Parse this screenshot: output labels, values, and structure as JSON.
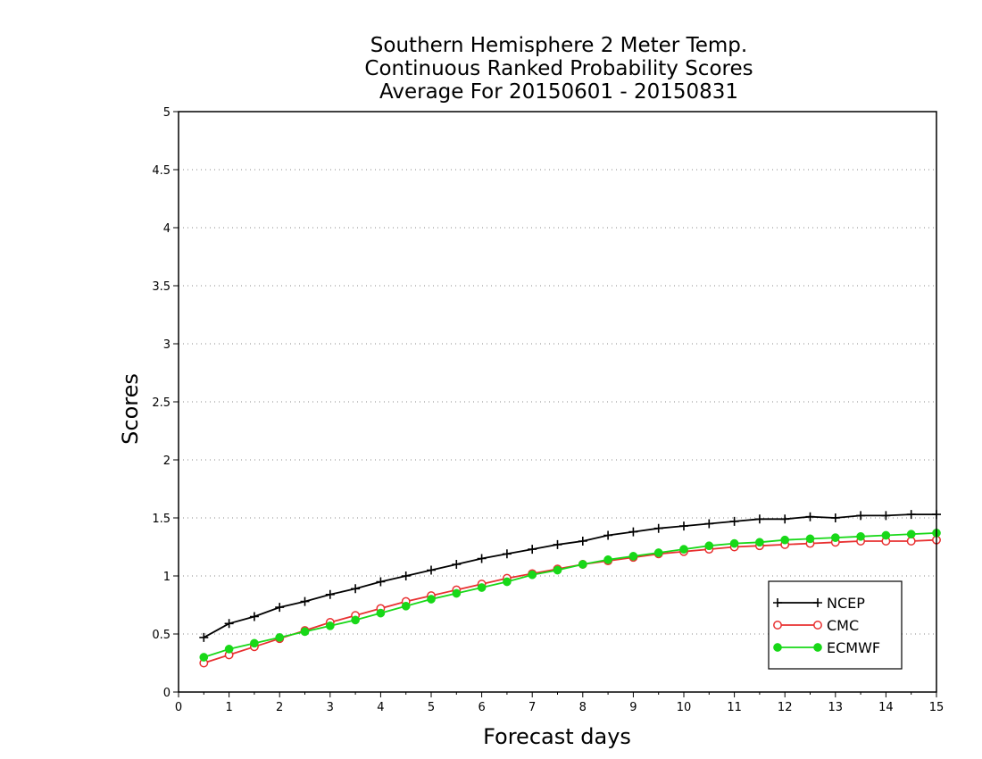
{
  "chart_data": {
    "type": "line",
    "title": [
      "Southern Hemisphere 2 Meter Temp.",
      "Continuous Ranked Probability Scores",
      "Average For 20150601 - 20150831"
    ],
    "xlabel": "Forecast days",
    "ylabel": "Scores",
    "xlim": [
      0,
      15
    ],
    "ylim": [
      0,
      5
    ],
    "xticks": [
      "0",
      "1",
      "2",
      "3",
      "4",
      "5",
      "6",
      "7",
      "8",
      "9",
      "10",
      "11",
      "12",
      "13",
      "14",
      "15"
    ],
    "yticks": [
      "0",
      "0.5",
      "1",
      "1.5",
      "2",
      "2.5",
      "3",
      "3.5",
      "4",
      "4.5",
      "5"
    ],
    "grid": "horizontal-dotted",
    "legend_position": "bottom-right",
    "x": [
      0.5,
      1,
      1.5,
      2,
      2.5,
      3,
      3.5,
      4,
      4.5,
      5,
      5.5,
      6,
      6.5,
      7,
      7.5,
      8,
      8.5,
      9,
      9.5,
      10,
      10.5,
      11,
      11.5,
      12,
      12.5,
      13,
      13.5,
      14,
      14.5,
      15
    ],
    "series": [
      {
        "name": "NCEP",
        "color": "#000000",
        "marker": "plus",
        "values": [
          0.47,
          0.59,
          0.65,
          0.73,
          0.78,
          0.84,
          0.89,
          0.95,
          1.0,
          1.05,
          1.1,
          1.15,
          1.19,
          1.23,
          1.27,
          1.3,
          1.35,
          1.38,
          1.41,
          1.43,
          1.45,
          1.47,
          1.49,
          1.49,
          1.51,
          1.5,
          1.52,
          1.52,
          1.53,
          1.53
        ]
      },
      {
        "name": "CMC",
        "color": "#e83030",
        "marker": "open-circle",
        "values": [
          0.25,
          0.32,
          0.39,
          0.46,
          0.53,
          0.6,
          0.66,
          0.72,
          0.78,
          0.83,
          0.88,
          0.93,
          0.98,
          1.02,
          1.06,
          1.1,
          1.13,
          1.16,
          1.19,
          1.21,
          1.23,
          1.25,
          1.26,
          1.27,
          1.28,
          1.29,
          1.3,
          1.3,
          1.3,
          1.31
        ]
      },
      {
        "name": "ECMWF",
        "color": "#18d818",
        "marker": "filled-circle",
        "values": [
          0.3,
          0.37,
          0.42,
          0.47,
          0.52,
          0.57,
          0.62,
          0.68,
          0.74,
          0.8,
          0.85,
          0.9,
          0.95,
          1.01,
          1.05,
          1.1,
          1.14,
          1.17,
          1.2,
          1.23,
          1.26,
          1.28,
          1.29,
          1.31,
          1.32,
          1.33,
          1.34,
          1.35,
          1.36,
          1.37
        ]
      }
    ]
  }
}
